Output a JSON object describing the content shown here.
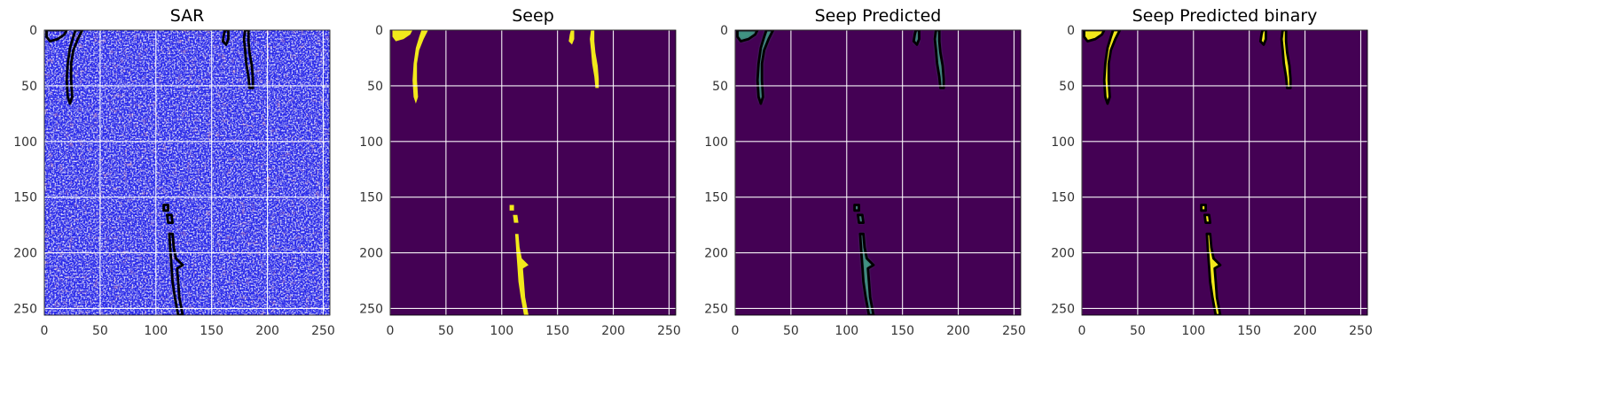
{
  "chart_data": [
    {
      "type": "heatmap",
      "title": "SAR",
      "colormap": "bwr",
      "background_color": "#2b2bea",
      "x_ticks": [
        "0",
        "50",
        "100",
        "150",
        "200",
        "250"
      ],
      "y_ticks": [
        "0",
        "50",
        "100",
        "150",
        "200",
        "250"
      ],
      "xlim": [
        0,
        256
      ],
      "ylim": [
        256,
        0
      ],
      "grid": true,
      "seep_contours": true,
      "seep_fill": false
    },
    {
      "type": "heatmap",
      "title": "Seep",
      "colormap": "viridis",
      "background_color": "#440154",
      "fill_color": "#f2e91b",
      "x_ticks": [
        "0",
        "50",
        "100",
        "150",
        "200",
        "250"
      ],
      "y_ticks": [
        "0",
        "50",
        "100",
        "150",
        "200",
        "250"
      ],
      "xlim": [
        0,
        256
      ],
      "ylim": [
        256,
        0
      ],
      "grid": true,
      "seep_contours": false,
      "seep_fill": true
    },
    {
      "type": "heatmap",
      "title": "Seep Predicted",
      "colormap": "viridis",
      "background_color": "#440154",
      "fill_color": "#3f9c85",
      "x_ticks": [
        "0",
        "50",
        "100",
        "150",
        "200",
        "250"
      ],
      "y_ticks": [
        "0",
        "50",
        "100",
        "150",
        "200",
        "250"
      ],
      "xlim": [
        0,
        256
      ],
      "ylim": [
        256,
        0
      ],
      "grid": true,
      "seep_contours": true,
      "seep_fill": true
    },
    {
      "type": "heatmap",
      "title": "Seep Predicted binary",
      "colormap": "viridis",
      "background_color": "#440154",
      "fill_color": "#f2e91b",
      "x_ticks": [
        "0",
        "50",
        "100",
        "150",
        "200",
        "250"
      ],
      "y_ticks": [
        "0",
        "50",
        "100",
        "150",
        "200",
        "250"
      ],
      "xlim": [
        0,
        256
      ],
      "ylim": [
        256,
        0
      ],
      "grid": true,
      "seep_contours": true,
      "seep_fill": true
    }
  ],
  "seep_regions": [
    {
      "name": "top-left-corner",
      "points": [
        [
          2,
          0
        ],
        [
          20,
          0
        ],
        [
          18,
          4
        ],
        [
          12,
          8
        ],
        [
          5,
          10
        ],
        [
          2,
          6
        ]
      ]
    },
    {
      "name": "left-streak",
      "points": [
        [
          28,
          0
        ],
        [
          34,
          0
        ],
        [
          30,
          8
        ],
        [
          26,
          18
        ],
        [
          24,
          30
        ],
        [
          24,
          45
        ],
        [
          25,
          60
        ],
        [
          23,
          66
        ],
        [
          21,
          60
        ],
        [
          20,
          45
        ],
        [
          21,
          30
        ],
        [
          23,
          16
        ],
        [
          26,
          6
        ]
      ]
    },
    {
      "name": "top-middle-small",
      "points": [
        [
          162,
          0
        ],
        [
          165,
          0
        ],
        [
          165,
          8
        ],
        [
          163,
          13
        ],
        [
          160,
          10
        ],
        [
          161,
          4
        ]
      ]
    },
    {
      "name": "top-middle-right",
      "points": [
        [
          180,
          0
        ],
        [
          183,
          0
        ],
        [
          183,
          10
        ],
        [
          184,
          20
        ],
        [
          186,
          32
        ],
        [
          187,
          44
        ],
        [
          187,
          52
        ],
        [
          184,
          52
        ],
        [
          183,
          42
        ],
        [
          181,
          30
        ],
        [
          180,
          18
        ],
        [
          179,
          8
        ]
      ]
    },
    {
      "name": "bottom-dot-1",
      "points": [
        [
          107,
          157
        ],
        [
          111,
          157
        ],
        [
          111,
          162
        ],
        [
          107,
          162
        ]
      ]
    },
    {
      "name": "bottom-dot-2",
      "points": [
        [
          110,
          166
        ],
        [
          114,
          166
        ],
        [
          115,
          173
        ],
        [
          111,
          173
        ]
      ]
    },
    {
      "name": "bottom-streak",
      "points": [
        [
          112,
          183
        ],
        [
          115,
          183
        ],
        [
          116,
          195
        ],
        [
          118,
          205
        ],
        [
          124,
          211
        ],
        [
          119,
          214
        ],
        [
          120,
          226
        ],
        [
          121,
          240
        ],
        [
          124,
          256
        ],
        [
          120,
          256
        ],
        [
          117,
          240
        ],
        [
          115,
          226
        ],
        [
          114,
          212
        ],
        [
          113,
          198
        ]
      ]
    }
  ]
}
